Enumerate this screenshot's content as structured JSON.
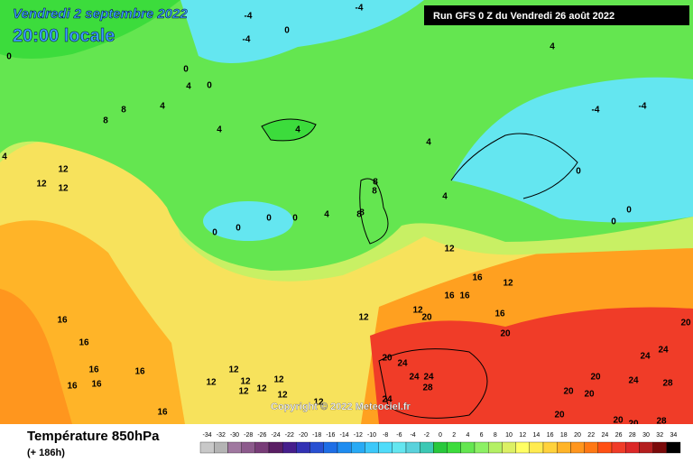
{
  "header": {
    "date": "Vendredi 2 septembre 2022",
    "time": "20:00 locale",
    "run": "Run GFS 0 Z du Vendredi 26 août 2022"
  },
  "map": {
    "labels": [
      -4,
      -4,
      0,
      -4,
      0,
      0,
      4,
      4,
      8,
      8,
      4,
      4,
      4,
      4,
      -4,
      -4,
      12,
      12,
      12,
      0,
      0,
      0,
      0,
      4,
      8,
      4,
      12,
      16,
      16,
      16,
      16,
      12,
      20,
      12,
      12,
      16,
      16,
      16,
      16,
      16,
      16,
      16,
      12,
      12,
      12,
      12,
      12,
      12,
      12,
      12,
      24,
      24,
      24,
      28,
      24,
      20,
      20,
      24,
      24,
      20,
      24,
      28,
      20,
      20,
      20,
      20,
      20,
      28,
      20,
      0,
      0,
      0,
      8,
      8,
      8,
      4,
      0
    ]
  },
  "copyright": "Copyright © 2022 Meteociel.fr",
  "footer": {
    "title": "Température 850hPa",
    "lead": "(+ 186h)"
  },
  "scale": {
    "ticks": [
      -34,
      -32,
      -30,
      -28,
      -26,
      -24,
      -22,
      -20,
      -18,
      -16,
      -14,
      -12,
      -10,
      -8,
      -6,
      -4,
      -2,
      0,
      2,
      4,
      6,
      8,
      10,
      12,
      14,
      16,
      18,
      20,
      22,
      24,
      26,
      28,
      30,
      32,
      34
    ],
    "colors": [
      "#c8c8c8",
      "#b4b4b4",
      "#a078a0",
      "#8c5a8c",
      "#783c78",
      "#5a1e64",
      "#461e8c",
      "#3232b4",
      "#2850d2",
      "#1e6ee6",
      "#1e8cf0",
      "#28aaf5",
      "#3cc8fa",
      "#50dcfa",
      "#64e6f0",
      "#5ad2dc",
      "#3cc8b4",
      "#28c83c",
      "#3cdc3c",
      "#64e650",
      "#8cf064",
      "#b4f064",
      "#dcf064",
      "#ffff64",
      "#ffeb50",
      "#ffd23c",
      "#ffb428",
      "#ff961e",
      "#ff7814",
      "#ff5014",
      "#f03c28",
      "#dc2828",
      "#b41e1e",
      "#7a0a0a",
      "#000000"
    ]
  }
}
